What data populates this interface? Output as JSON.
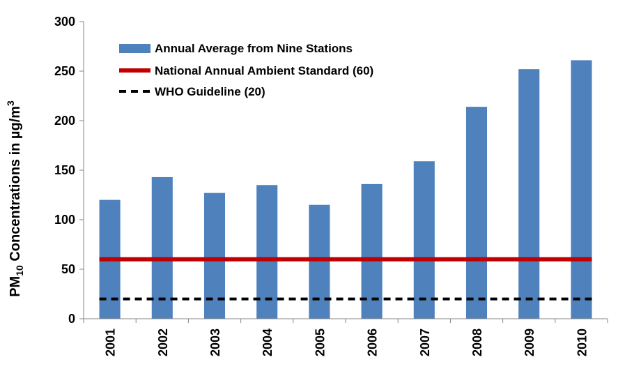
{
  "chart_data": {
    "type": "bar",
    "categories": [
      "2001",
      "2002",
      "2003",
      "2004",
      "2005",
      "2006",
      "2007",
      "2008",
      "2009",
      "2010"
    ],
    "series": [
      {
        "name": "Annual Average from Nine Stations",
        "kind": "bar",
        "color": "#4f81bd",
        "values": [
          120,
          143,
          127,
          135,
          115,
          136,
          159,
          214,
          252,
          261
        ]
      },
      {
        "name": "National Annual Ambient Standard (60)",
        "kind": "line",
        "color": "#c00000",
        "style": "solid",
        "values": [
          60,
          60,
          60,
          60,
          60,
          60,
          60,
          60,
          60,
          60
        ]
      },
      {
        "name": "WHO Guideline (20)",
        "kind": "line",
        "color": "#000000",
        "style": "dashed",
        "values": [
          20,
          20,
          20,
          20,
          20,
          20,
          20,
          20,
          20,
          20
        ]
      }
    ],
    "ylabel": {
      "prefix": "PM",
      "sub": "10",
      "middle": " Concentrations in µg/m",
      "sup": "3"
    },
    "ylim": [
      0,
      300
    ],
    "yticks": [
      "0",
      "50",
      "100",
      "150",
      "200",
      "250",
      "300"
    ],
    "legend_position": "top-left",
    "grid": false
  }
}
